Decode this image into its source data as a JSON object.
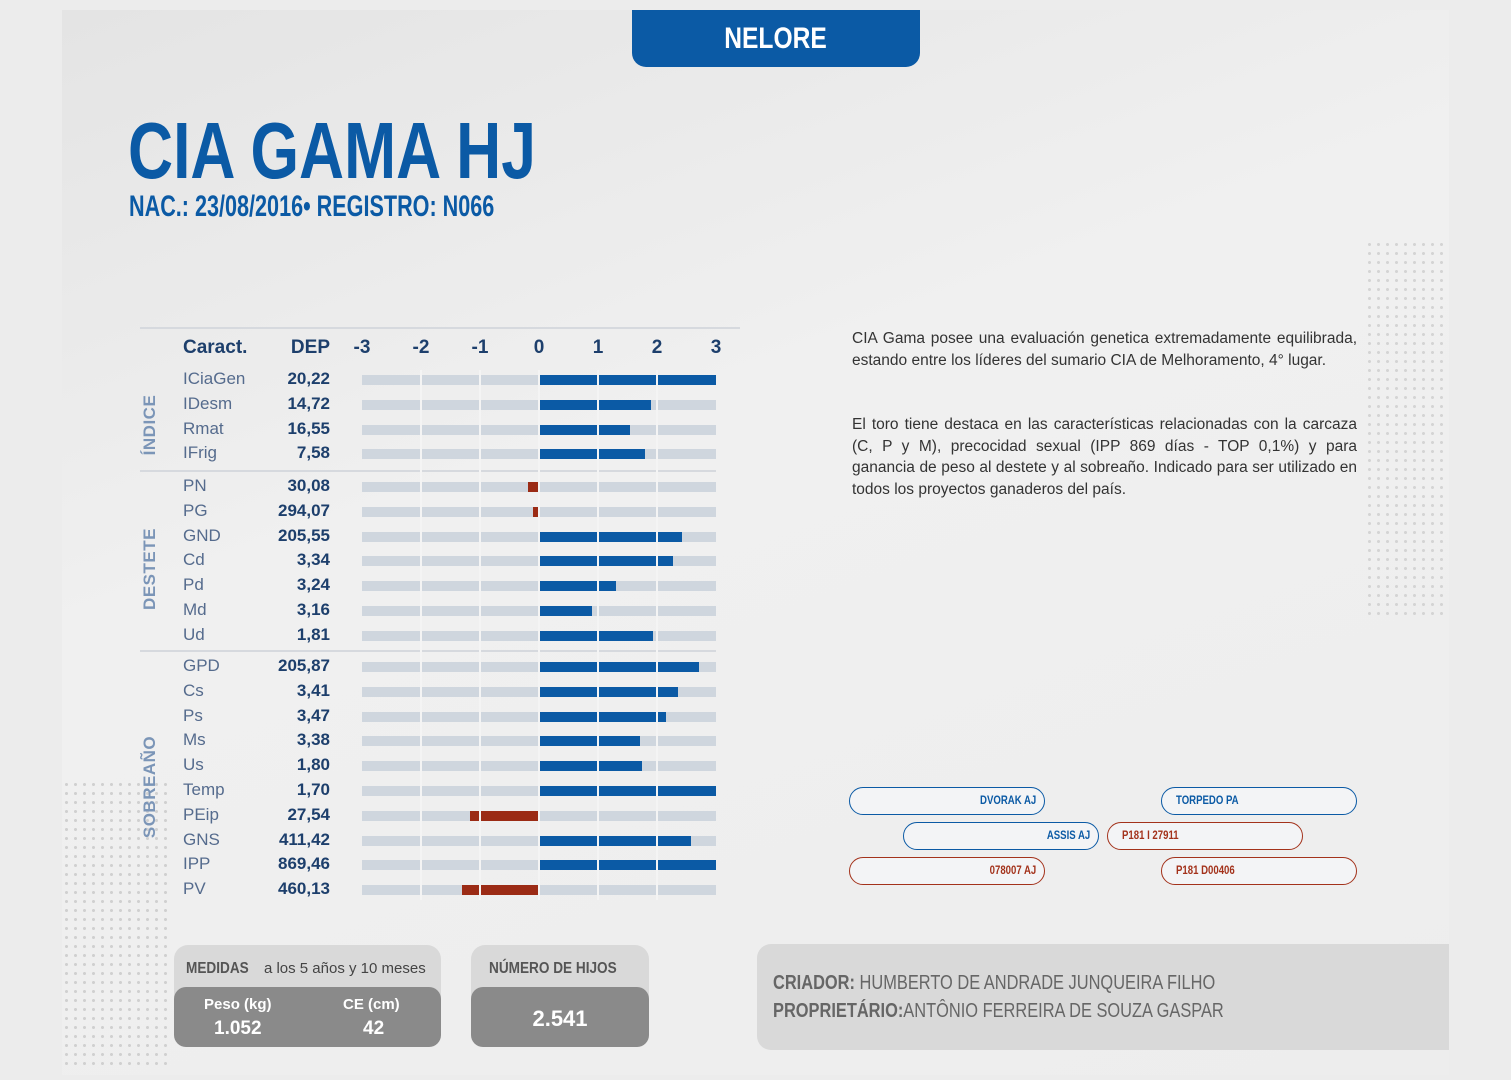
{
  "breed": "NELORE",
  "bull_name": "CIA GAMA HJ",
  "subtitle": "NAC.: 23/08/2016• REGISTRO: N066",
  "chart_data": {
    "type": "bar",
    "header": {
      "caract": "Caract.",
      "dep": "DEP"
    },
    "x_ticks": [
      "-3",
      "-2",
      "-1",
      "0",
      "1",
      "2",
      "3"
    ],
    "xlim": [
      -3,
      3
    ],
    "colors": {
      "positive": "#0b5aa5",
      "negative": "#9b2b15",
      "track": "#cfd6de"
    },
    "groups": [
      {
        "label": "ÍNDICE",
        "rows": [
          {
            "caract": "ICiaGen",
            "dep": "20,22",
            "value": 3.0
          },
          {
            "caract": "IDesm",
            "dep": "14,72",
            "value": 1.9
          },
          {
            "caract": "Rmat",
            "dep": "16,55",
            "value": 1.55
          },
          {
            "caract": "IFrig",
            "dep": "7,58",
            "value": 1.8
          }
        ]
      },
      {
        "label": "DESTETE",
        "rows": [
          {
            "caract": "PN",
            "dep": "30,08",
            "value": -0.18
          },
          {
            "caract": "PG",
            "dep": "294,07",
            "value": -0.1
          },
          {
            "caract": "GND",
            "dep": "205,55",
            "value": 2.42
          },
          {
            "caract": "Cd",
            "dep": "3,34",
            "value": 2.27
          },
          {
            "caract": "Pd",
            "dep": "3,24",
            "value": 1.3
          },
          {
            "caract": "Md",
            "dep": "3,16",
            "value": 0.9
          },
          {
            "caract": "Ud",
            "dep": "1,81",
            "value": 1.93
          }
        ]
      },
      {
        "label": "SOBREAÑO",
        "rows": [
          {
            "caract": "GPD",
            "dep": "205,87",
            "value": 2.72
          },
          {
            "caract": "Cs",
            "dep": "3,41",
            "value": 2.35
          },
          {
            "caract": "Ps",
            "dep": "3,47",
            "value": 2.15
          },
          {
            "caract": "Ms",
            "dep": "3,38",
            "value": 1.72
          },
          {
            "caract": "Us",
            "dep": "1,80",
            "value": 1.75
          },
          {
            "caract": "Temp",
            "dep": "1,70",
            "value": 3.0
          },
          {
            "caract": "PEip",
            "dep": "27,54",
            "value": -1.17
          },
          {
            "caract": "GNS",
            "dep": "411,42",
            "value": 2.57
          },
          {
            "caract": "IPP",
            "dep": "869,46",
            "value": 3.0
          },
          {
            "caract": "PV",
            "dep": "460,13",
            "value": -1.3
          }
        ]
      }
    ]
  },
  "description": {
    "p1": "CIA Gama posee una evaluación genetica extremadamente equilibrada, estando entre los líderes del sumario CIA de Melhoramento, 4° lugar.",
    "p2": "El toro tiene destaca en las características relacionadas con la carcaza (C, P y M), precocidad sexual (IPP 869 días - TOP 0,1%) y para ganancia de peso al destete y al sobreaño. Indicado para ser utilizado en todos los proyectos ganaderos del país."
  },
  "pedigree": {
    "sire_sire": "DVORAK AJ",
    "sire": "ASSIS AJ",
    "sire_dam": "078007 AJ",
    "dam_sire": "TORPEDO PA",
    "dam": "P181 I 27911",
    "dam_dam": "P181 D00406"
  },
  "measures": {
    "title_bold": "MEDIDAS",
    "title_rest": " a los 5 años y 10 meses",
    "weight_label": "Peso (kg)",
    "weight_value": "1.052",
    "ce_label": "CE (cm)",
    "ce_value": "42"
  },
  "offspring": {
    "title": "NÚMERO DE HIJOS",
    "value": "2.541"
  },
  "owners": {
    "breeder_label": "CRIADOR:",
    "breeder": "HUMBERTO DE ANDRADE JUNQUEIRA FILHO",
    "owner_label": "PROPRIETÁRIO:",
    "owner": "ANTÔNIO FERREIRA DE SOUZA GASPAR"
  }
}
